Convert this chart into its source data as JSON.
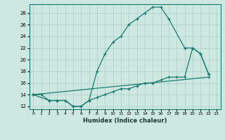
{
  "xlabel": "Humidex (Indice chaleur)",
  "bg_color": "#cce8e0",
  "line_color": "#1a7a6e",
  "grid_color": "#aacfc8",
  "xlim": [
    -0.5,
    23.5
  ],
  "ylim": [
    11.5,
    29.5
  ],
  "xticks": [
    0,
    1,
    2,
    3,
    4,
    5,
    6,
    7,
    8,
    9,
    10,
    11,
    12,
    13,
    14,
    15,
    16,
    17,
    18,
    19,
    20,
    21,
    22,
    23
  ],
  "yticks": [
    12,
    14,
    16,
    18,
    20,
    22,
    24,
    26,
    28
  ],
  "line1_x": [
    0,
    1,
    2,
    3,
    4,
    5,
    6,
    7,
    8,
    9,
    10,
    11,
    12,
    13,
    14,
    15,
    16,
    17,
    19,
    20,
    21,
    22
  ],
  "line1_y": [
    14,
    14,
    13,
    13,
    13,
    12,
    12,
    13,
    18,
    21,
    23,
    24,
    26,
    27,
    28,
    29,
    29,
    27,
    22,
    22,
    21,
    17.5
  ],
  "line2_x": [
    0,
    2,
    3,
    4,
    5,
    6,
    7,
    8,
    9,
    10,
    11,
    12,
    13,
    14,
    15,
    16,
    17,
    18,
    19,
    20,
    21,
    22
  ],
  "line2_y": [
    14,
    13,
    13,
    13,
    12,
    12,
    13,
    13.5,
    14,
    14.5,
    15,
    15,
    15.5,
    16,
    16,
    16.5,
    17,
    17,
    17,
    22,
    21,
    17.5
  ],
  "line3_x": [
    0,
    22
  ],
  "line3_y": [
    14,
    17
  ]
}
